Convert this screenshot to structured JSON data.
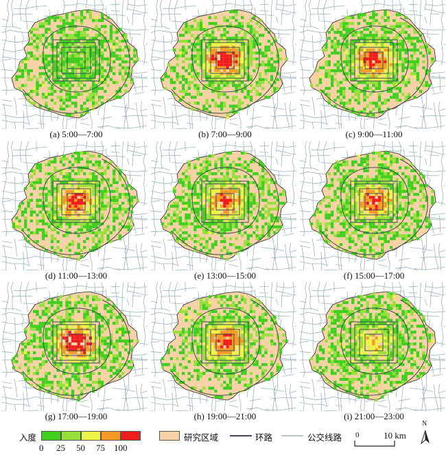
{
  "colors": {
    "bins": [
      "#3fcf1f",
      "#97e03c",
      "#ecf547",
      "#f59a24",
      "#f01d1d"
    ],
    "study_area": "#f7d2a6",
    "ring_road": "#3a4a52",
    "bus_line": "#9cb2bc",
    "background": "#ffffff"
  },
  "panels": [
    {
      "label": "(a) 5:00—7:00",
      "intensity": 0.08
    },
    {
      "label": "(b) 7:00—9:00",
      "intensity": 0.85
    },
    {
      "label": "(c) 9:00—11:00",
      "intensity": 0.75
    },
    {
      "label": "(d) 11:00—13:00",
      "intensity": 0.7
    },
    {
      "label": "(e) 13:00—15:00",
      "intensity": 0.65
    },
    {
      "label": "(f) 15:00—17:00",
      "intensity": 0.68
    },
    {
      "label": "(g) 17:00—19:00",
      "intensity": 0.95
    },
    {
      "label": "(h) 19:00—21:00",
      "intensity": 0.72
    },
    {
      "label": "(i) 21:00—23:00",
      "intensity": 0.4
    }
  ],
  "legend": {
    "title": "入度",
    "ticks": [
      "0",
      "25",
      "50",
      "75",
      "100"
    ],
    "study_area": "研究区域",
    "ring_road": "环路",
    "bus_line": "公交线路",
    "scale_zero": "0",
    "scale_label": "10 km",
    "north": "N"
  }
}
